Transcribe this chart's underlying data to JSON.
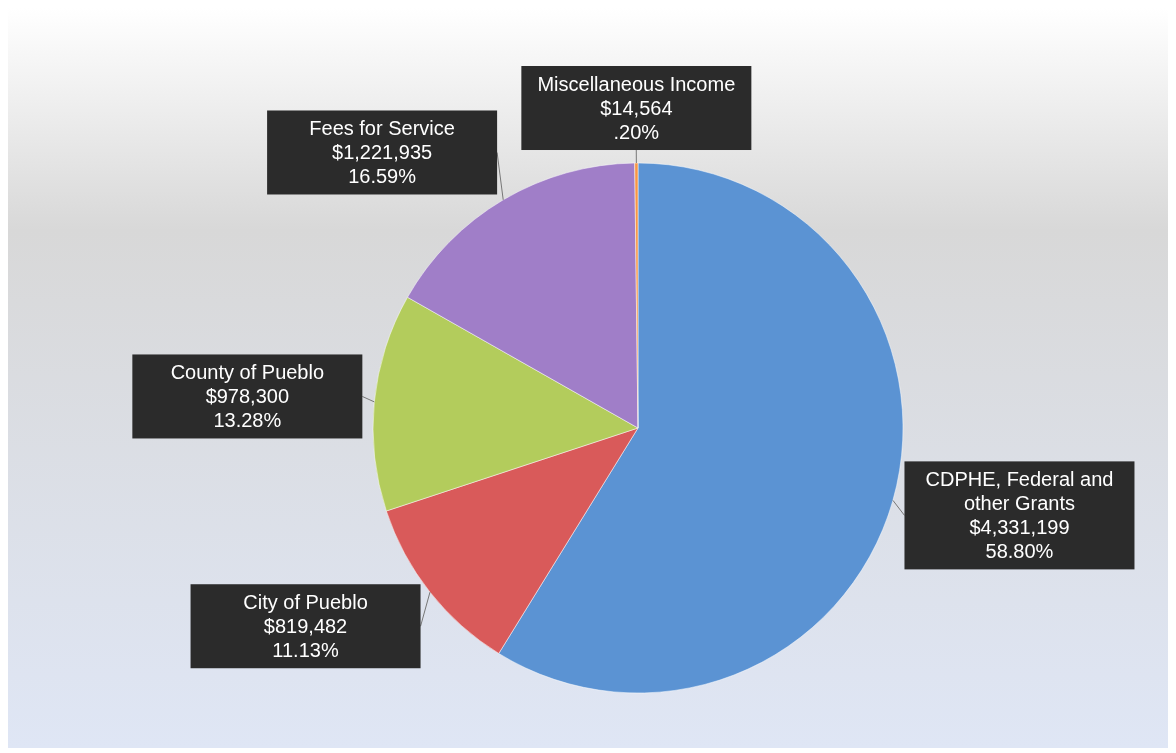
{
  "chart_data": {
    "type": "pie",
    "categories": [
      "CDPHE, Federal and other Grants",
      "City of Pueblo",
      "County of Pueblo",
      "Fees for Service",
      "Miscellaneous Income"
    ],
    "values": [
      4331199,
      819482,
      978300,
      1221935,
      14564
    ],
    "value_labels": [
      "$4,331,199\n58.80%",
      "$819,482\n11.13%",
      "$978,300\n13.28%",
      "$1,221,935\n16.59%",
      "$14,564\n.20%"
    ],
    "colors": [
      "#5b93d3",
      "#d95a5a",
      "#b3cc5c",
      "#a07ec8",
      "#f79646"
    ]
  }
}
